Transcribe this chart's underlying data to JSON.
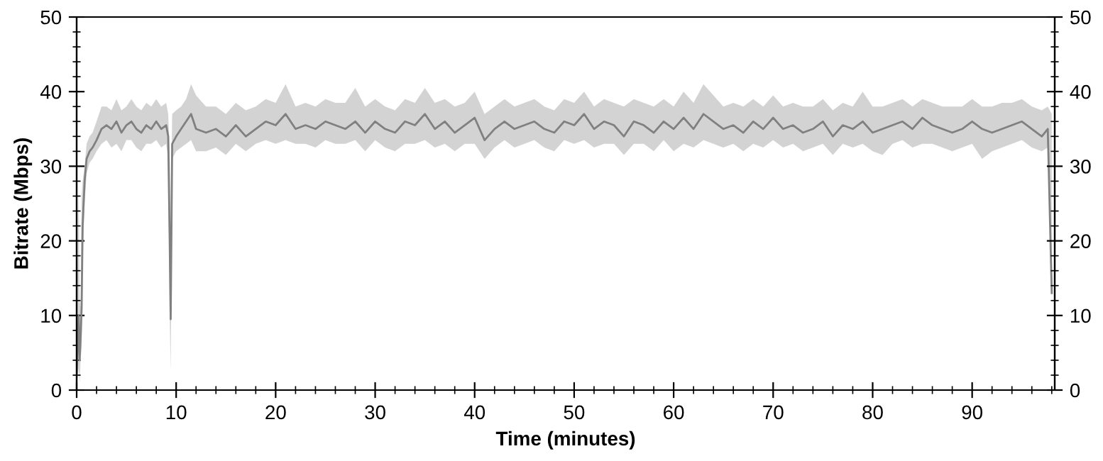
{
  "chart_data": {
    "type": "line",
    "xlabel": "Time (minutes)",
    "ylabel": "Bitrate (Mbps)",
    "xlim": [
      0,
      98.3
    ],
    "ylim": [
      0,
      50
    ],
    "y2lim": [
      0,
      50
    ],
    "xticks": [
      0,
      {
        "value": 2,
        "label": null
      },
      {
        "value": 4,
        "label": null
      },
      {
        "value": 6,
        "label": null
      },
      {
        "value": 8,
        "label": null
      },
      10,
      {
        "value": 12,
        "label": null
      },
      {
        "value": 14,
        "label": null
      },
      {
        "value": 16,
        "label": null
      },
      {
        "value": 18,
        "label": null
      },
      20,
      {
        "value": 22,
        "label": null
      },
      {
        "value": 24,
        "label": null
      },
      {
        "value": 26,
        "label": null
      },
      {
        "value": 28,
        "label": null
      },
      30,
      {
        "value": 32,
        "label": null
      },
      {
        "value": 34,
        "label": null
      },
      {
        "value": 36,
        "label": null
      },
      {
        "value": 38,
        "label": null
      },
      40,
      {
        "value": 42,
        "label": null
      },
      {
        "value": 44,
        "label": null
      },
      {
        "value": 46,
        "label": null
      },
      {
        "value": 48,
        "label": null
      },
      50,
      {
        "value": 52,
        "label": null
      },
      {
        "value": 54,
        "label": null
      },
      {
        "value": 56,
        "label": null
      },
      {
        "value": 58,
        "label": null
      },
      60,
      {
        "value": 62,
        "label": null
      },
      {
        "value": 64,
        "label": null
      },
      {
        "value": 66,
        "label": null
      },
      {
        "value": 68,
        "label": null
      },
      70,
      {
        "value": 72,
        "label": null
      },
      {
        "value": 74,
        "label": null
      },
      {
        "value": 76,
        "label": null
      },
      {
        "value": 78,
        "label": null
      },
      80,
      {
        "value": 82,
        "label": null
      },
      {
        "value": 84,
        "label": null
      },
      {
        "value": 86,
        "label": null
      },
      {
        "value": 88,
        "label": null
      },
      90,
      {
        "value": 92,
        "label": null
      },
      {
        "value": 94,
        "label": null
      },
      {
        "value": 96,
        "label": null
      },
      {
        "value": 98,
        "label": null
      }
    ],
    "yticks": [
      0,
      {
        "value": 2,
        "label": null
      },
      {
        "value": 4,
        "label": null
      },
      {
        "value": 6,
        "label": null
      },
      {
        "value": 8,
        "label": null
      },
      10,
      {
        "value": 12,
        "label": null
      },
      {
        "value": 14,
        "label": null
      },
      {
        "value": 16,
        "label": null
      },
      {
        "value": 18,
        "label": null
      },
      20,
      {
        "value": 22,
        "label": null
      },
      {
        "value": 24,
        "label": null
      },
      {
        "value": 26,
        "label": null
      },
      {
        "value": 28,
        "label": null
      },
      30,
      {
        "value": 32,
        "label": null
      },
      {
        "value": 34,
        "label": null
      },
      {
        "value": 36,
        "label": null
      },
      {
        "value": 38,
        "label": null
      },
      40,
      {
        "value": 42,
        "label": null
      },
      {
        "value": 44,
        "label": null
      },
      {
        "value": 46,
        "label": null
      },
      {
        "value": 48,
        "label": null
      },
      50
    ],
    "y2ticks": [
      0,
      {
        "value": 2,
        "label": null
      },
      {
        "value": 4,
        "label": null
      },
      {
        "value": 6,
        "label": null
      },
      {
        "value": 8,
        "label": null
      },
      10,
      {
        "value": 12,
        "label": null
      },
      {
        "value": 14,
        "label": null
      },
      {
        "value": 16,
        "label": null
      },
      {
        "value": 18,
        "label": null
      },
      20,
      {
        "value": 22,
        "label": null
      },
      {
        "value": 24,
        "label": null
      },
      {
        "value": 26,
        "label": null
      },
      {
        "value": 28,
        "label": null
      },
      30,
      {
        "value": 32,
        "label": null
      },
      {
        "value": 34,
        "label": null
      },
      {
        "value": 36,
        "label": null
      },
      {
        "value": 38,
        "label": null
      },
      40,
      {
        "value": 42,
        "label": null
      },
      {
        "value": 44,
        "label": null
      },
      {
        "value": 46,
        "label": null
      },
      {
        "value": 48,
        "label": null
      },
      50
    ],
    "grid": false,
    "legend": false,
    "series": [
      {
        "color": "#808080",
        "x": [
          0,
          0.2,
          0.3,
          0.4,
          0.5,
          0.6,
          0.8,
          1.0,
          1.3,
          1.6,
          2.0,
          2.5,
          3,
          3.5,
          4,
          4.5,
          5,
          5.5,
          6,
          6.5,
          7,
          7.5,
          8,
          8.5,
          9,
          9.2,
          9.35,
          9.45,
          9.6,
          10,
          10.5,
          11,
          11.5,
          12,
          13,
          14,
          15,
          16,
          17,
          18,
          19,
          20,
          21,
          22,
          23,
          24,
          25,
          26,
          27,
          28,
          29,
          30,
          31,
          32,
          33,
          34,
          35,
          36,
          37,
          38,
          39,
          40,
          41,
          42,
          43,
          44,
          45,
          46,
          47,
          48,
          49,
          50,
          51,
          52,
          53,
          54,
          55,
          56,
          57,
          58,
          59,
          60,
          61,
          62,
          63,
          64,
          65,
          66,
          67,
          68,
          69,
          70,
          71,
          72,
          73,
          74,
          75,
          76,
          77,
          78,
          79,
          80,
          81,
          82,
          83,
          84,
          85,
          86,
          87,
          88,
          89,
          90,
          91,
          92,
          93,
          94,
          95,
          96,
          97,
          97.6,
          98.0
        ],
        "values": [
          2,
          10,
          4,
          7,
          11,
          22,
          28,
          31,
          32,
          32.5,
          33.5,
          35,
          35.5,
          35,
          36,
          34.5,
          35.5,
          36,
          35,
          34.5,
          35.5,
          35,
          36,
          35,
          35.5,
          34,
          20,
          9.5,
          33,
          34,
          35,
          36,
          37,
          35,
          34.5,
          35,
          34,
          35.5,
          34,
          35,
          36,
          35.5,
          37,
          35,
          35.5,
          35,
          36,
          35.5,
          35,
          36,
          34.5,
          36,
          35,
          34.5,
          36,
          35.5,
          37,
          35,
          36,
          34.5,
          35.5,
          36.5,
          33.5,
          35,
          36,
          35,
          35.5,
          36,
          35,
          34.5,
          36,
          35.5,
          37,
          35,
          36,
          35.5,
          34,
          36,
          35.5,
          34.5,
          36,
          35,
          36.5,
          35,
          37,
          36,
          35,
          35.5,
          34.5,
          36,
          35,
          36.5,
          35,
          35.5,
          34.5,
          35,
          36,
          34,
          35.5,
          35,
          36,
          34.5,
          35,
          35.5,
          36,
          35,
          36.5,
          35.5,
          35,
          34.5,
          35,
          36,
          35,
          34.5,
          35,
          35.5,
          36,
          35,
          34,
          35,
          13
        ],
        "lower": [
          0,
          3,
          1,
          4,
          6,
          18,
          25,
          29,
          30.5,
          31,
          32,
          33,
          33.5,
          32.5,
          33,
          32,
          33.5,
          33.5,
          32.5,
          32,
          33,
          33,
          33.5,
          32.5,
          33,
          31,
          10,
          2.5,
          31,
          32,
          32.5,
          33,
          33.5,
          32,
          32,
          32.5,
          31.5,
          33,
          32,
          33,
          33.5,
          33,
          33.5,
          33,
          33,
          32.5,
          33.5,
          33,
          33,
          33.5,
          32,
          33.5,
          32.5,
          32,
          33,
          33,
          33.5,
          32.5,
          33,
          32,
          33,
          33,
          31,
          32.5,
          33.5,
          32.5,
          33,
          33.5,
          32.5,
          32,
          33.5,
          33,
          33.5,
          32.5,
          33,
          33,
          31.5,
          33,
          33,
          32,
          33.5,
          32,
          33,
          32.5,
          33.5,
          33,
          32.5,
          33,
          32,
          33,
          32.5,
          33.5,
          32.5,
          33,
          32,
          32.5,
          33,
          31.5,
          33,
          32.5,
          33,
          32,
          31.5,
          33,
          33.5,
          32.5,
          33,
          33,
          32.5,
          32,
          32.5,
          33,
          31,
          32,
          32.5,
          33,
          33.5,
          32.5,
          32,
          32.5,
          12
        ],
        "upper": [
          8,
          28,
          12,
          11,
          26,
          28,
          30,
          33,
          34,
          34.5,
          36,
          38,
          38,
          37.5,
          39,
          37.5,
          38,
          39,
          38,
          37.5,
          38.5,
          38,
          39,
          38,
          38.5,
          37,
          32,
          20,
          37,
          37.5,
          38,
          39,
          41,
          39.5,
          38,
          38,
          37,
          38.5,
          37.5,
          38,
          39,
          38.5,
          41,
          38,
          38.5,
          38,
          39,
          38.5,
          38.5,
          40.5,
          38,
          39,
          38,
          37.5,
          39,
          38.5,
          40.5,
          38.5,
          39,
          38,
          38.5,
          40,
          37,
          38,
          39,
          38,
          38.5,
          39,
          38,
          37.5,
          39,
          38.5,
          40,
          38,
          39,
          38.5,
          38,
          39,
          38.5,
          38,
          39,
          38,
          40,
          38.5,
          41,
          39.5,
          38,
          38.5,
          38,
          39,
          38,
          39.5,
          38,
          38.5,
          38,
          38,
          39,
          37.5,
          38.5,
          38,
          40,
          38,
          38,
          38.5,
          39,
          38,
          39,
          38.5,
          38,
          38,
          38,
          39,
          38,
          38,
          38.5,
          38.5,
          39,
          38,
          37.5,
          38,
          37
        ]
      }
    ]
  }
}
